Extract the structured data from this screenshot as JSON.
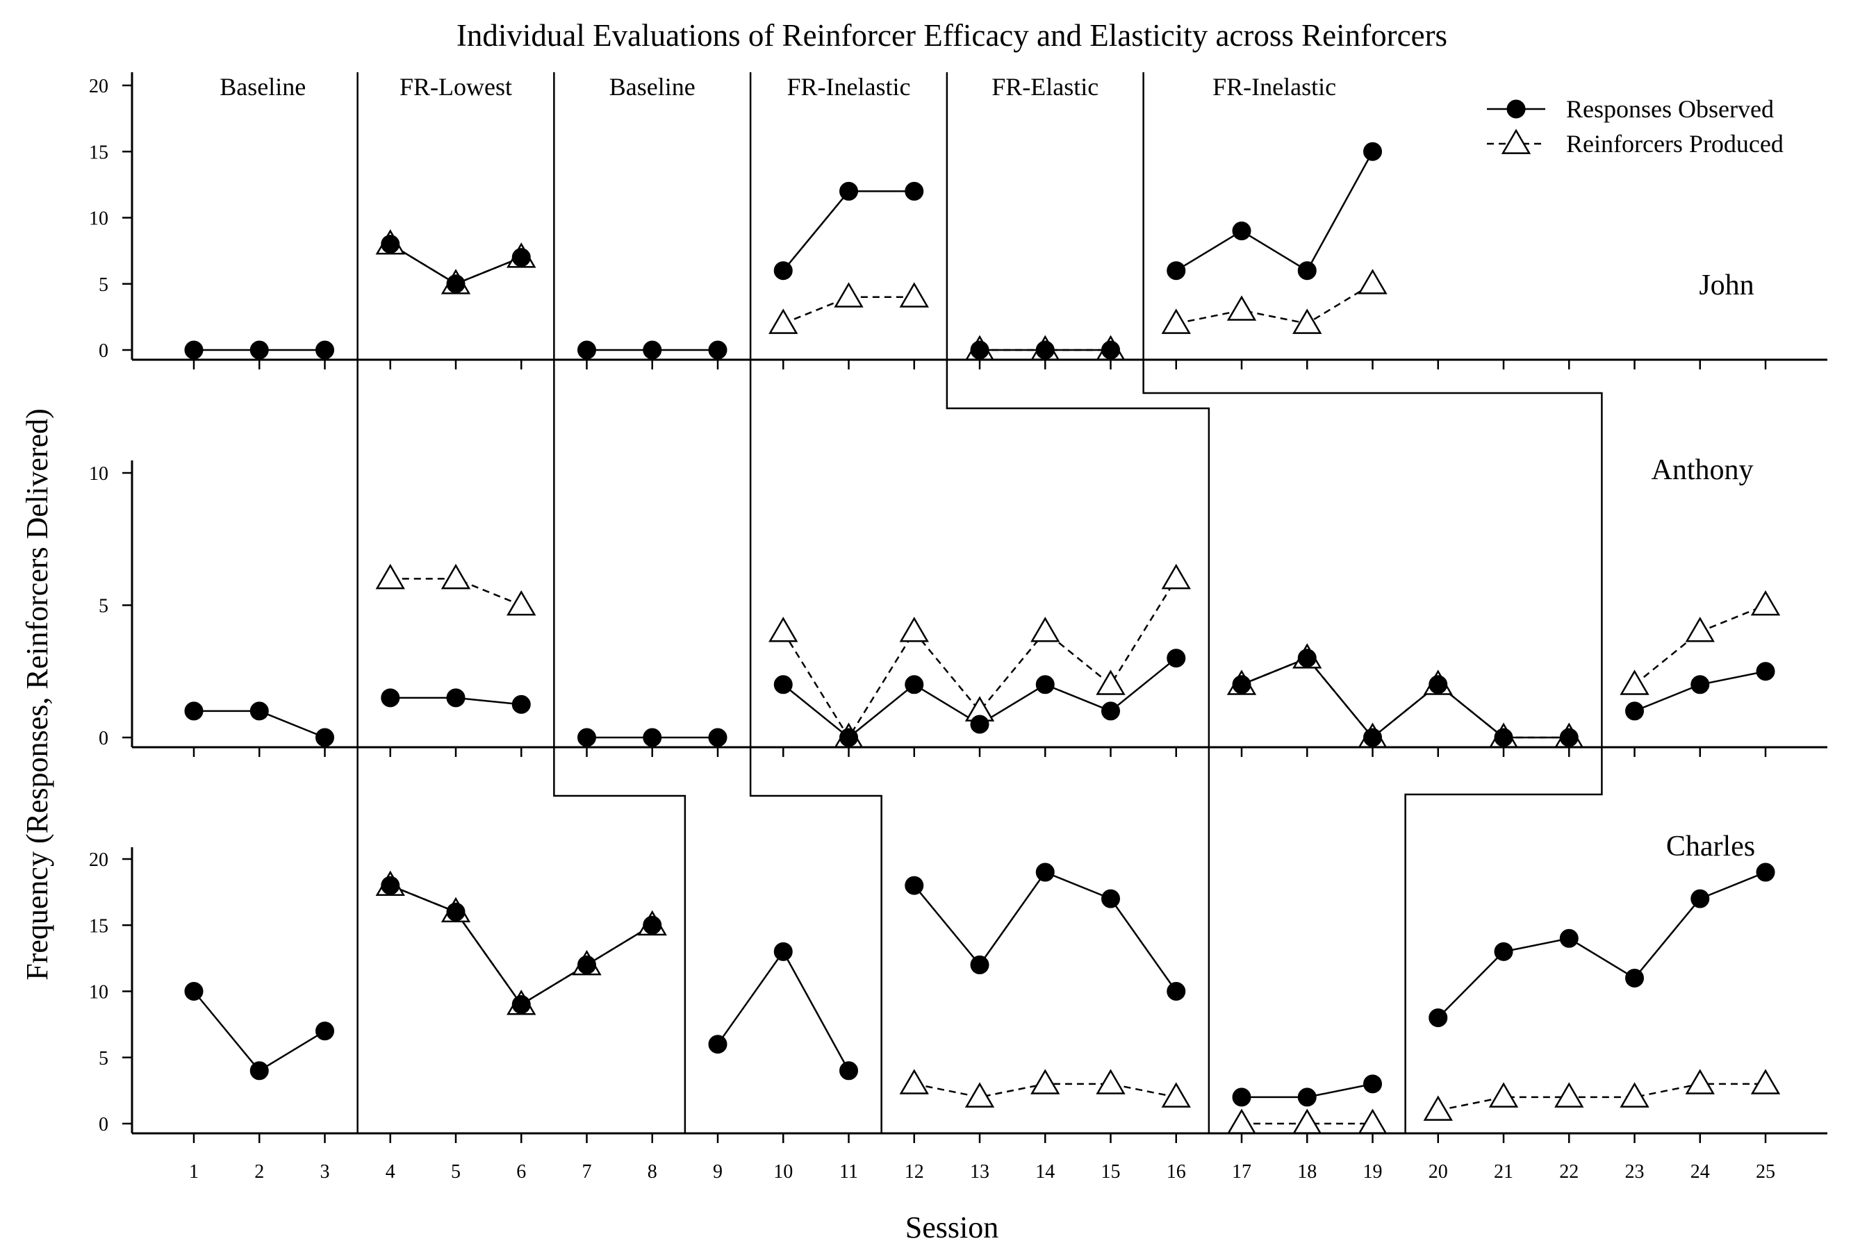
{
  "chart_data": {
    "type": "line",
    "title": "Individual Evaluations of Reinforcer Efficacy and Elasticity across Reinforcers",
    "xlabel": "Session",
    "ylabel": "Frequency (Responses, Reinforcers Delivered)",
    "x_ticks": [
      1,
      2,
      3,
      4,
      5,
      6,
      7,
      8,
      9,
      10,
      11,
      12,
      13,
      14,
      15,
      16,
      17,
      18,
      19,
      20,
      21,
      22,
      23,
      24,
      25
    ],
    "xlim": [
      0.5,
      26.5
    ],
    "legend": {
      "placement": "top-right",
      "entries": [
        {
          "name": "Responses Observed",
          "marker": "filled-circle",
          "line": "solid"
        },
        {
          "name": "Reinforcers Produced",
          "marker": "open-triangle",
          "line": "dashed"
        }
      ]
    },
    "phase_labels": [
      "Baseline",
      "FR-Lowest",
      "Baseline",
      "FR-Inelastic",
      "FR-Elastic",
      "FR-Inelastic"
    ],
    "panels": [
      {
        "name": "John",
        "ylim": [
          0,
          20
        ],
        "y_ticks": [
          0,
          5,
          10,
          15,
          20
        ],
        "phase_changes": [
          3.5,
          6.5,
          9.5,
          12.5,
          15.5
        ],
        "series": [
          {
            "name": "Responses Observed",
            "segments": [
              [
                [
                  1,
                  0
                ],
                [
                  2,
                  0
                ],
                [
                  3,
                  0
                ]
              ],
              [
                [
                  4,
                  8
                ],
                [
                  5,
                  5
                ],
                [
                  6,
                  7
                ]
              ],
              [
                [
                  7,
                  0
                ],
                [
                  8,
                  0
                ],
                [
                  9,
                  0
                ]
              ],
              [
                [
                  10,
                  6
                ],
                [
                  11,
                  12
                ],
                [
                  12,
                  12
                ]
              ],
              [
                [
                  13,
                  0
                ],
                [
                  14,
                  0
                ],
                [
                  15,
                  0
                ]
              ],
              [
                [
                  16,
                  6
                ],
                [
                  17,
                  9
                ],
                [
                  18,
                  6
                ],
                [
                  19,
                  15
                ]
              ]
            ]
          },
          {
            "name": "Reinforcers Produced",
            "segments": [
              [
                [
                  4,
                  8
                ],
                [
                  5,
                  5
                ],
                [
                  6,
                  7
                ]
              ],
              [
                [
                  10,
                  2
                ],
                [
                  11,
                  4
                ],
                [
                  12,
                  4
                ]
              ],
              [
                [
                  13,
                  0
                ],
                [
                  14,
                  0
                ],
                [
                  15,
                  0
                ]
              ],
              [
                [
                  16,
                  2
                ],
                [
                  17,
                  3
                ],
                [
                  18,
                  2
                ],
                [
                  19,
                  5
                ]
              ]
            ]
          }
        ]
      },
      {
        "name": "Anthony",
        "ylim": [
          0,
          10
        ],
        "y_ticks": [
          0,
          5,
          10
        ],
        "phase_changes": [
          3.5,
          6.5,
          9.5,
          16.5,
          22.5
        ],
        "series": [
          {
            "name": "Responses Observed",
            "segments": [
              [
                [
                  1,
                  1
                ],
                [
                  2,
                  1
                ],
                [
                  3,
                  0
                ]
              ],
              [
                [
                  4,
                  1.5
                ],
                [
                  5,
                  1.5
                ],
                [
                  6,
                  1.25
                ]
              ],
              [
                [
                  7,
                  0
                ],
                [
                  8,
                  0
                ],
                [
                  9,
                  0
                ]
              ],
              [
                [
                  10,
                  2
                ],
                [
                  11,
                  0
                ],
                [
                  12,
                  2
                ],
                [
                  13,
                  0.5
                ],
                [
                  14,
                  2
                ],
                [
                  15,
                  1
                ],
                [
                  16,
                  3
                ]
              ],
              [
                [
                  17,
                  2
                ],
                [
                  18,
                  3
                ],
                [
                  19,
                  0
                ],
                [
                  20,
                  2
                ],
                [
                  21,
                  0
                ],
                [
                  22,
                  0
                ]
              ],
              [
                [
                  23,
                  1
                ],
                [
                  24,
                  2
                ],
                [
                  25,
                  2.5
                ]
              ]
            ]
          },
          {
            "name": "Reinforcers Produced",
            "segments": [
              [
                [
                  4,
                  6
                ],
                [
                  5,
                  6
                ],
                [
                  6,
                  5
                ]
              ],
              [
                [
                  10,
                  4
                ],
                [
                  11,
                  0
                ],
                [
                  12,
                  4
                ],
                [
                  13,
                  1
                ],
                [
                  14,
                  4
                ],
                [
                  15,
                  2
                ],
                [
                  16,
                  6
                ]
              ],
              [
                [
                  17,
                  2
                ],
                [
                  18,
                  3
                ],
                [
                  19,
                  0
                ],
                [
                  20,
                  2
                ],
                [
                  21,
                  0
                ],
                [
                  22,
                  0
                ]
              ],
              [
                [
                  23,
                  2
                ],
                [
                  24,
                  4
                ],
                [
                  25,
                  5
                ]
              ]
            ]
          }
        ]
      },
      {
        "name": "Charles",
        "ylim": [
          0,
          20
        ],
        "y_ticks": [
          0,
          5,
          10,
          15,
          20
        ],
        "phase_changes": [
          3.5,
          8.5,
          11.5,
          16.5,
          19.5
        ],
        "series": [
          {
            "name": "Responses Observed",
            "segments": [
              [
                [
                  1,
                  10
                ],
                [
                  2,
                  4
                ],
                [
                  3,
                  7
                ]
              ],
              [
                [
                  4,
                  18
                ],
                [
                  5,
                  16
                ],
                [
                  6,
                  9
                ],
                [
                  7,
                  12
                ],
                [
                  8,
                  15
                ]
              ],
              [
                [
                  9,
                  6
                ],
                [
                  10,
                  13
                ],
                [
                  11,
                  4
                ]
              ],
              [
                [
                  12,
                  18
                ],
                [
                  13,
                  12
                ],
                [
                  14,
                  19
                ],
                [
                  15,
                  17
                ],
                [
                  16,
                  10
                ]
              ],
              [
                [
                  17,
                  2
                ],
                [
                  18,
                  2
                ],
                [
                  19,
                  3
                ]
              ],
              [
                [
                  20,
                  8
                ],
                [
                  21,
                  13
                ],
                [
                  22,
                  14
                ],
                [
                  23,
                  11
                ],
                [
                  24,
                  17
                ],
                [
                  25,
                  19
                ]
              ]
            ]
          },
          {
            "name": "Reinforcers Produced",
            "segments": [
              [
                [
                  4,
                  18
                ],
                [
                  5,
                  16
                ],
                [
                  6,
                  9
                ],
                [
                  7,
                  12
                ],
                [
                  8,
                  15
                ]
              ],
              [
                [
                  12,
                  3
                ],
                [
                  13,
                  2
                ],
                [
                  14,
                  3
                ],
                [
                  15,
                  3
                ],
                [
                  16,
                  2
                ]
              ],
              [
                [
                  17,
                  0
                ],
                [
                  18,
                  0
                ],
                [
                  19,
                  0
                ]
              ],
              [
                [
                  20,
                  1
                ],
                [
                  21,
                  2
                ],
                [
                  22,
                  2
                ],
                [
                  23,
                  2
                ],
                [
                  24,
                  3
                ],
                [
                  25,
                  3
                ]
              ]
            ]
          }
        ]
      }
    ]
  }
}
